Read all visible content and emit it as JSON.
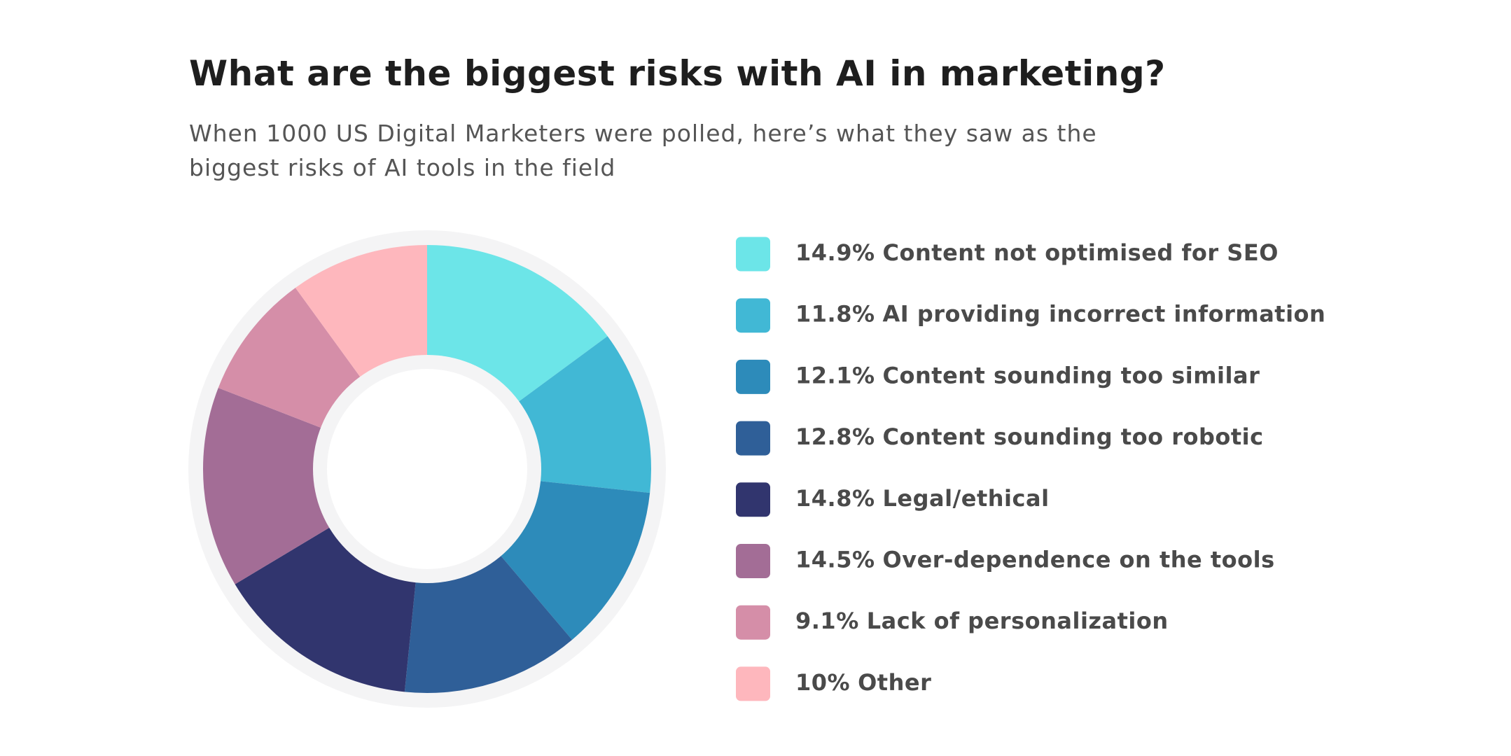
{
  "chart_data": {
    "type": "pie",
    "title": "What are the biggest risks with AI in marketing?",
    "subtitle": "When 1000 US Digital Marketers were polled, here’s what they saw as the biggest risks of AI tools in the field",
    "categories": [
      "Content not optimised for SEO",
      "AI providing incorrect information",
      "Content sounding too similar",
      "Content sounding too robotic",
      "Legal/ethical",
      "Over-dependence on the tools",
      "Lack of personalization",
      "Other"
    ],
    "values": [
      14.9,
      11.8,
      12.1,
      12.8,
      14.8,
      14.5,
      9.1,
      10
    ],
    "value_labels": [
      "14.9%",
      "11.8%",
      "12.1%",
      "12.8%",
      "14.8%",
      "14.5%",
      "9.1%",
      "10%"
    ],
    "colors": [
      "#6ce5e8",
      "#41b8d5",
      "#2d8bba",
      "#2f5f98",
      "#31356e",
      "#a36d96",
      "#d58ea8",
      "#feb7bd"
    ],
    "legend": "right"
  }
}
